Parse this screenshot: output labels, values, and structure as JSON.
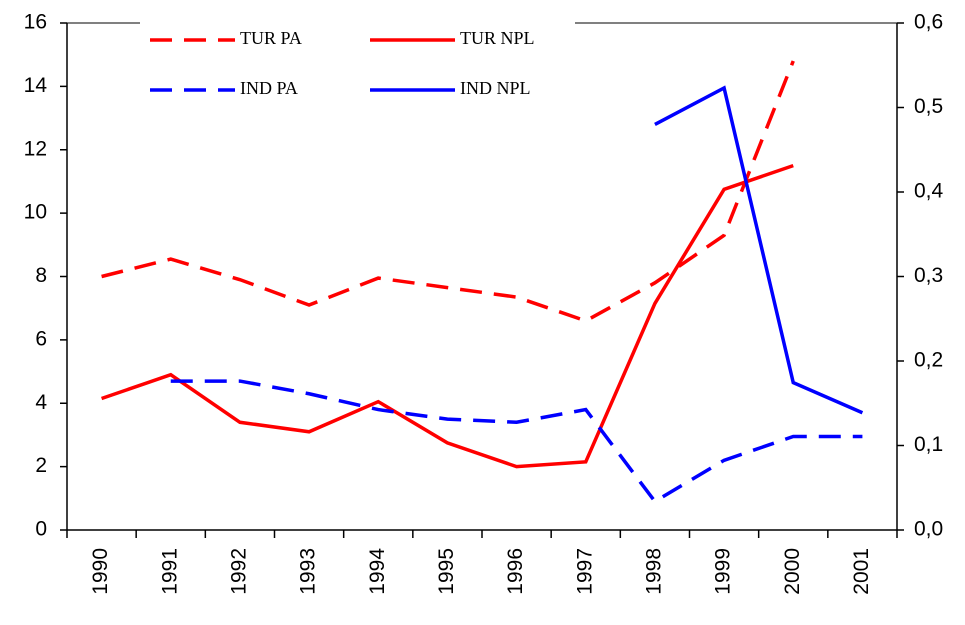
{
  "chart_data": {
    "type": "line",
    "categories": [
      "1990",
      "1991",
      "1992",
      "1993",
      "1994",
      "1995",
      "1996",
      "1997",
      "1998",
      "1999",
      "2000",
      "2001"
    ],
    "series": [
      {
        "name": "TUR PA",
        "color": "#ff0000",
        "linestyle": "dashed",
        "values": [
          8.0,
          8.55,
          7.9,
          7.1,
          7.95,
          7.65,
          7.35,
          6.6,
          7.8,
          9.3,
          14.8,
          null
        ]
      },
      {
        "name": "TUR NPL",
        "color": "#ff0000",
        "linestyle": "solid",
        "values": [
          4.15,
          4.9,
          3.4,
          3.1,
          4.05,
          2.75,
          2.0,
          2.15,
          7.15,
          10.75,
          11.5,
          null
        ]
      },
      {
        "name": "IND PA",
        "color": "#0000ff",
        "linestyle": "dashed",
        "values": [
          null,
          4.7,
          4.7,
          4.3,
          3.8,
          3.5,
          3.4,
          3.8,
          0.9,
          2.2,
          2.95,
          2.95
        ]
      },
      {
        "name": "IND NPL",
        "color": "#0000ff",
        "linestyle": "solid",
        "values": [
          null,
          null,
          null,
          null,
          null,
          null,
          null,
          null,
          12.8,
          13.95,
          4.65,
          3.7
        ]
      }
    ],
    "ylim": [
      0,
      16
    ],
    "yticks": [
      0,
      2,
      4,
      6,
      8,
      10,
      12,
      14,
      16
    ],
    "y2lim": [
      0,
      0.6
    ],
    "y2ticks": [
      {
        "value": 0,
        "label": "0,0"
      },
      {
        "value": 0.1,
        "label": "0,1"
      },
      {
        "value": 0.2,
        "label": "0,2"
      },
      {
        "value": 0.3,
        "label": "0,3"
      },
      {
        "value": 0.4,
        "label": "0,4"
      },
      {
        "value": 0.5,
        "label": "0,5"
      },
      {
        "value": 0.6,
        "label": "0,6"
      }
    ],
    "legend": "top"
  }
}
